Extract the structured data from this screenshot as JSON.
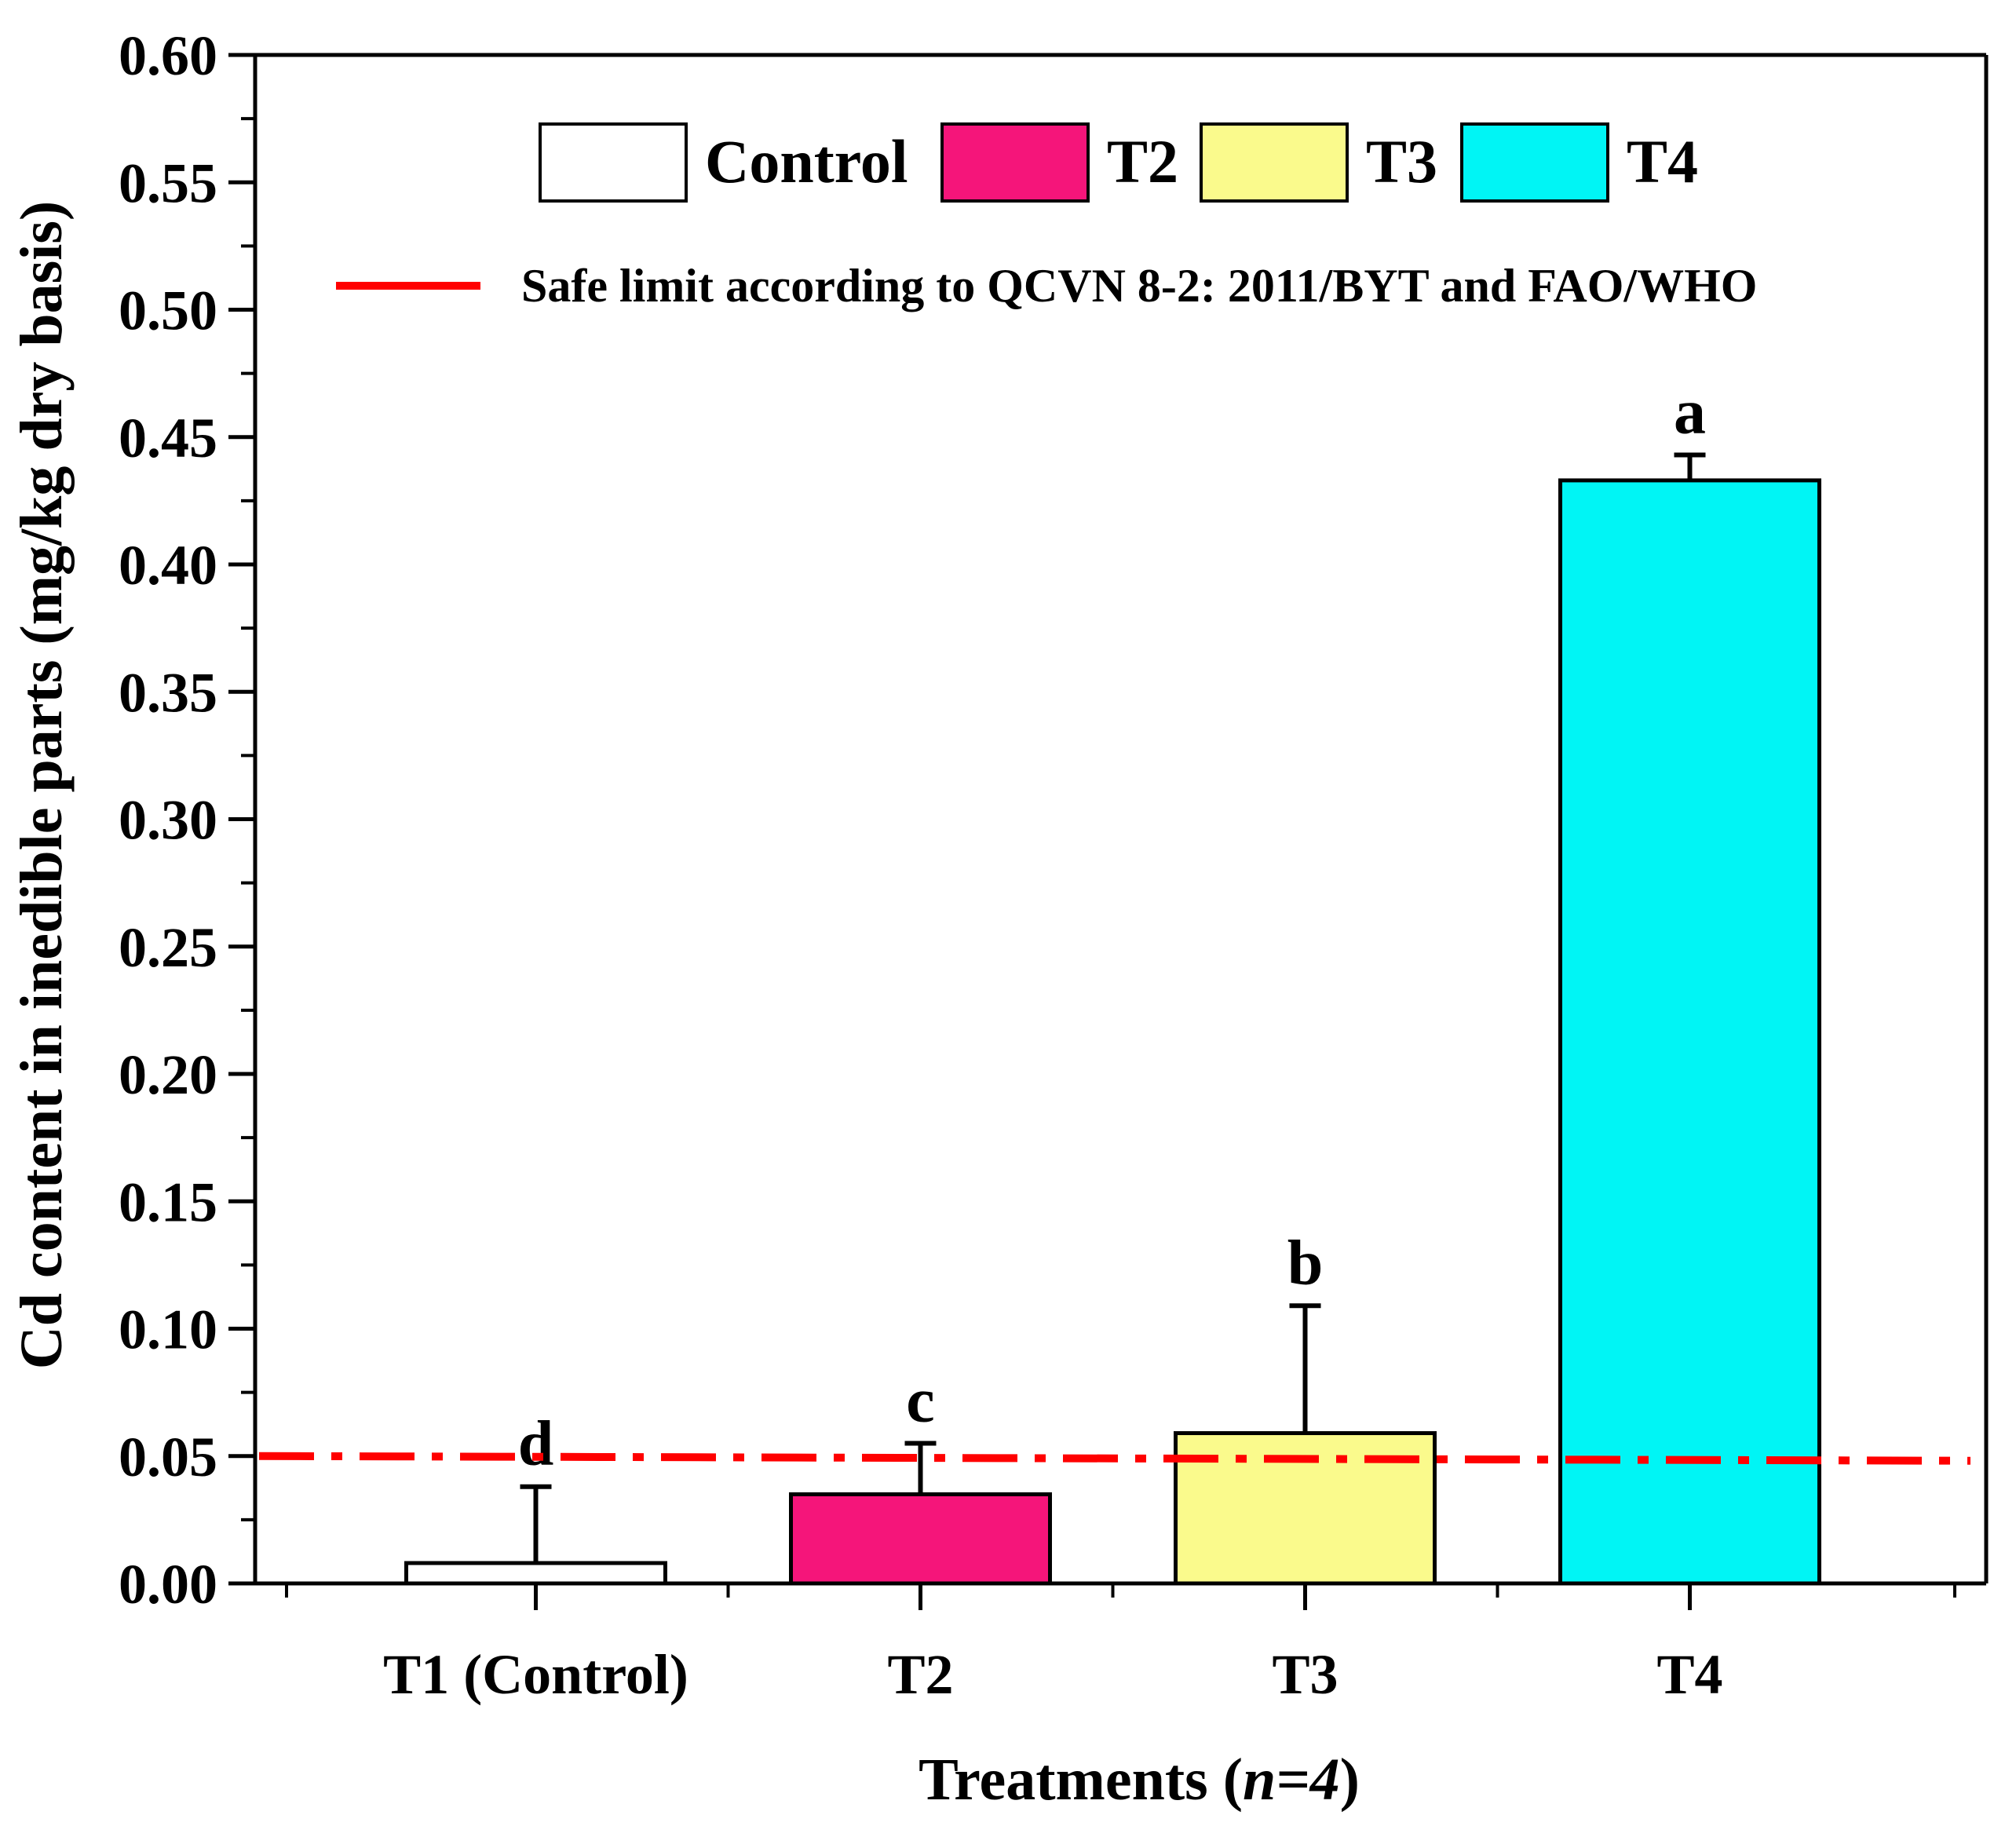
{
  "chart_data": {
    "type": "bar",
    "categories": [
      "T1 (Control)",
      "T2",
      "T3",
      "T4"
    ],
    "series": [
      {
        "name": "Control",
        "color": "#ffffff",
        "values": [
          0.008,
          null,
          null,
          null
        ]
      },
      {
        "name": "T2",
        "color": "#f5157a",
        "values": [
          null,
          0.035,
          null,
          null
        ]
      },
      {
        "name": "T3",
        "color": "#fafa8c",
        "values": [
          null,
          null,
          0.059,
          null
        ]
      },
      {
        "name": "T4",
        "color": "#00f5f5",
        "values": [
          null,
          null,
          null,
          0.433
        ]
      }
    ],
    "values": [
      0.008,
      0.035,
      0.059,
      0.433
    ],
    "error_bars": [
      0.03,
      0.02,
      0.05,
      0.01
    ],
    "significance_letters": [
      "d",
      "c",
      "b",
      "a"
    ],
    "xlabel_prefix": "Treatments (",
    "xlabel_italic": "n=4",
    "xlabel_suffix": ")",
    "ylabel": "Cd content in inedible parts (mg/kg dry basis)",
    "ylim": [
      0,
      0.6
    ],
    "yticks": [
      "0.00",
      "0.05",
      "0.10",
      "0.15",
      "0.20",
      "0.25",
      "0.30",
      "0.35",
      "0.40",
      "0.45",
      "0.50",
      "0.55",
      "0.60"
    ],
    "reference_line": {
      "value": 0.05,
      "label": "Safe limit according to QCVN 8-2: 2011/BYT and FAO/WHO",
      "color": "#ff0000"
    },
    "legend_position": "top",
    "grid": false
  }
}
